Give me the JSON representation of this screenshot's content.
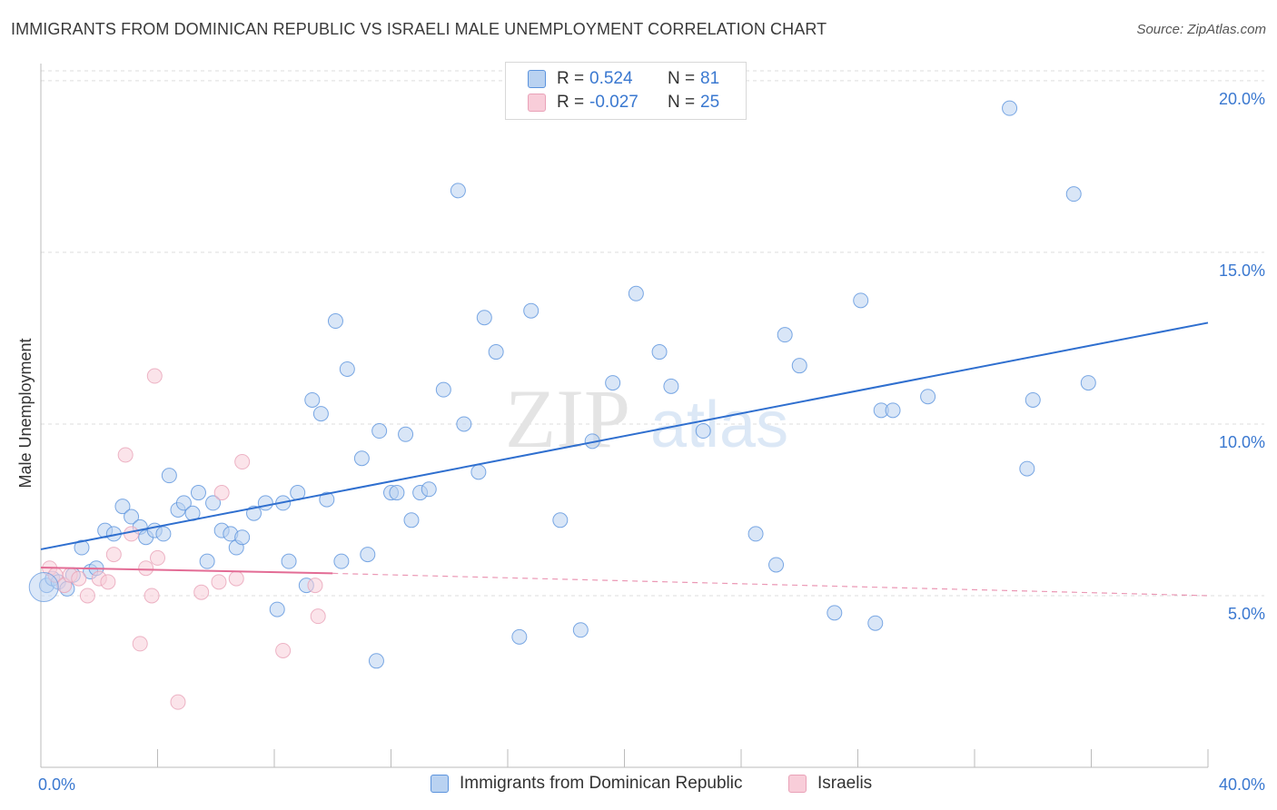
{
  "title": "IMMIGRANTS FROM DOMINICAN REPUBLIC VS ISRAELI MALE UNEMPLOYMENT CORRELATION CHART",
  "source": "Source: ZipAtlas.com",
  "watermark": {
    "zip": "ZIP",
    "atlas": "atlas"
  },
  "colors": {
    "blue": "#5b93dd",
    "blue_fill": "#b9d2f1",
    "blue_line": "#2f6fcf",
    "pink": "#e9a2b8",
    "pink_fill": "#f8cdd9",
    "pink_line": "#e36c95",
    "axis_text": "#3a78d0",
    "grid": "#dddddd"
  },
  "legend": {
    "rows": [
      {
        "r_label": "R =",
        "r_value": "0.524",
        "n_label": "N =",
        "n_value": "81",
        "series": "blue"
      },
      {
        "r_label": "R =",
        "r_value": "-0.027",
        "n_label": "N =",
        "n_value": "25",
        "series": "pink"
      }
    ]
  },
  "bottom_legend": [
    {
      "label": "Immigrants from Dominican Republic",
      "series": "blue"
    },
    {
      "label": "Israelis",
      "series": "pink"
    }
  ],
  "chart_data": {
    "type": "scatter",
    "title": "IMMIGRANTS FROM DOMINICAN REPUBLIC VS ISRAELI MALE UNEMPLOYMENT CORRELATION CHART",
    "xlabel": "",
    "ylabel": "Male Unemployment",
    "xlim": [
      0,
      40
    ],
    "ylim": [
      0,
      20.5
    ],
    "x_tick_labels": [
      {
        "value": 0,
        "label": "0.0%"
      },
      {
        "value": 40,
        "label": "40.0%"
      }
    ],
    "y_tick_labels": [
      {
        "value": 5,
        "label": "5.0%"
      },
      {
        "value": 10,
        "label": "10.0%"
      },
      {
        "value": 15,
        "label": "15.0%"
      },
      {
        "value": 20,
        "label": "20.0%"
      }
    ],
    "x_minor_ticks": [
      0,
      4,
      8,
      12,
      16,
      20,
      24,
      28,
      32,
      36,
      40
    ],
    "grid": true,
    "legend_position": "top-center",
    "series": [
      {
        "name": "Immigrants from Dominican Republic",
        "color": "blue",
        "points": [
          [
            0.2,
            5.3
          ],
          [
            0.4,
            5.5
          ],
          [
            0.6,
            5.4
          ],
          [
            0.9,
            5.2
          ],
          [
            1.1,
            5.6
          ],
          [
            1.4,
            6.4
          ],
          [
            1.7,
            5.7
          ],
          [
            1.9,
            5.8
          ],
          [
            2.2,
            6.9
          ],
          [
            2.5,
            6.8
          ],
          [
            2.8,
            7.6
          ],
          [
            3.1,
            7.3
          ],
          [
            3.4,
            7.0
          ],
          [
            3.6,
            6.7
          ],
          [
            3.9,
            6.9
          ],
          [
            4.2,
            6.8
          ],
          [
            4.4,
            8.5
          ],
          [
            4.7,
            7.5
          ],
          [
            4.9,
            7.7
          ],
          [
            5.2,
            7.4
          ],
          [
            5.4,
            8.0
          ],
          [
            5.7,
            6.0
          ],
          [
            5.9,
            7.7
          ],
          [
            6.2,
            6.9
          ],
          [
            6.5,
            6.8
          ],
          [
            6.7,
            6.4
          ],
          [
            6.9,
            6.7
          ],
          [
            7.3,
            7.4
          ],
          [
            7.7,
            7.7
          ],
          [
            8.1,
            4.6
          ],
          [
            8.3,
            7.7
          ],
          [
            8.5,
            6.0
          ],
          [
            8.8,
            8.0
          ],
          [
            9.1,
            5.3
          ],
          [
            9.3,
            10.7
          ],
          [
            9.6,
            10.3
          ],
          [
            9.8,
            7.8
          ],
          [
            10.1,
            13.0
          ],
          [
            10.3,
            6.0
          ],
          [
            10.5,
            11.6
          ],
          [
            11.0,
            9.0
          ],
          [
            11.2,
            6.2
          ],
          [
            11.5,
            3.1
          ],
          [
            11.6,
            9.8
          ],
          [
            12.0,
            8.0
          ],
          [
            12.2,
            8.0
          ],
          [
            12.5,
            9.7
          ],
          [
            12.7,
            7.2
          ],
          [
            13.0,
            8.0
          ],
          [
            13.3,
            8.1
          ],
          [
            13.8,
            11.0
          ],
          [
            14.3,
            16.8
          ],
          [
            14.5,
            10.0
          ],
          [
            15.0,
            8.6
          ],
          [
            15.2,
            13.1
          ],
          [
            15.6,
            12.1
          ],
          [
            16.4,
            3.8
          ],
          [
            16.8,
            13.3
          ],
          [
            17.8,
            7.2
          ],
          [
            18.5,
            4.0
          ],
          [
            18.9,
            9.5
          ],
          [
            19.6,
            11.2
          ],
          [
            20.4,
            13.8
          ],
          [
            21.2,
            12.1
          ],
          [
            21.6,
            11.1
          ],
          [
            22.7,
            9.8
          ],
          [
            24.5,
            6.8
          ],
          [
            25.2,
            5.9
          ],
          [
            25.5,
            12.6
          ],
          [
            26.0,
            11.7
          ],
          [
            27.2,
            4.5
          ],
          [
            28.1,
            13.6
          ],
          [
            28.6,
            4.2
          ],
          [
            28.8,
            10.4
          ],
          [
            29.2,
            10.4
          ],
          [
            30.4,
            10.8
          ],
          [
            33.2,
            19.2
          ],
          [
            33.8,
            8.7
          ],
          [
            34.0,
            10.7
          ],
          [
            35.4,
            16.7
          ],
          [
            35.9,
            11.2
          ]
        ],
        "trend": {
          "x": [
            0,
            40
          ],
          "y": [
            6.35,
            12.95
          ]
        }
      },
      {
        "name": "Israelis",
        "color": "pink",
        "points": [
          [
            0.3,
            5.8
          ],
          [
            0.5,
            5.6
          ],
          [
            0.8,
            5.3
          ],
          [
            1.0,
            5.6
          ],
          [
            1.3,
            5.5
          ],
          [
            1.6,
            5.0
          ],
          [
            2.0,
            5.5
          ],
          [
            2.3,
            5.4
          ],
          [
            2.5,
            6.2
          ],
          [
            2.9,
            9.1
          ],
          [
            3.1,
            6.8
          ],
          [
            3.4,
            3.6
          ],
          [
            3.6,
            5.8
          ],
          [
            3.8,
            5.0
          ],
          [
            3.9,
            11.4
          ],
          [
            4.0,
            6.1
          ],
          [
            4.7,
            1.9
          ],
          [
            5.5,
            5.1
          ],
          [
            6.1,
            5.4
          ],
          [
            6.2,
            8.0
          ],
          [
            6.7,
            5.5
          ],
          [
            6.9,
            8.9
          ],
          [
            8.3,
            3.4
          ],
          [
            9.4,
            5.3
          ],
          [
            9.5,
            4.4
          ]
        ],
        "trend": {
          "x": [
            0,
            10
          ],
          "y": [
            5.82,
            5.65
          ]
        },
        "trend_dashed": {
          "x": [
            10,
            40
          ],
          "y": [
            5.65,
            5.0
          ]
        }
      }
    ]
  }
}
